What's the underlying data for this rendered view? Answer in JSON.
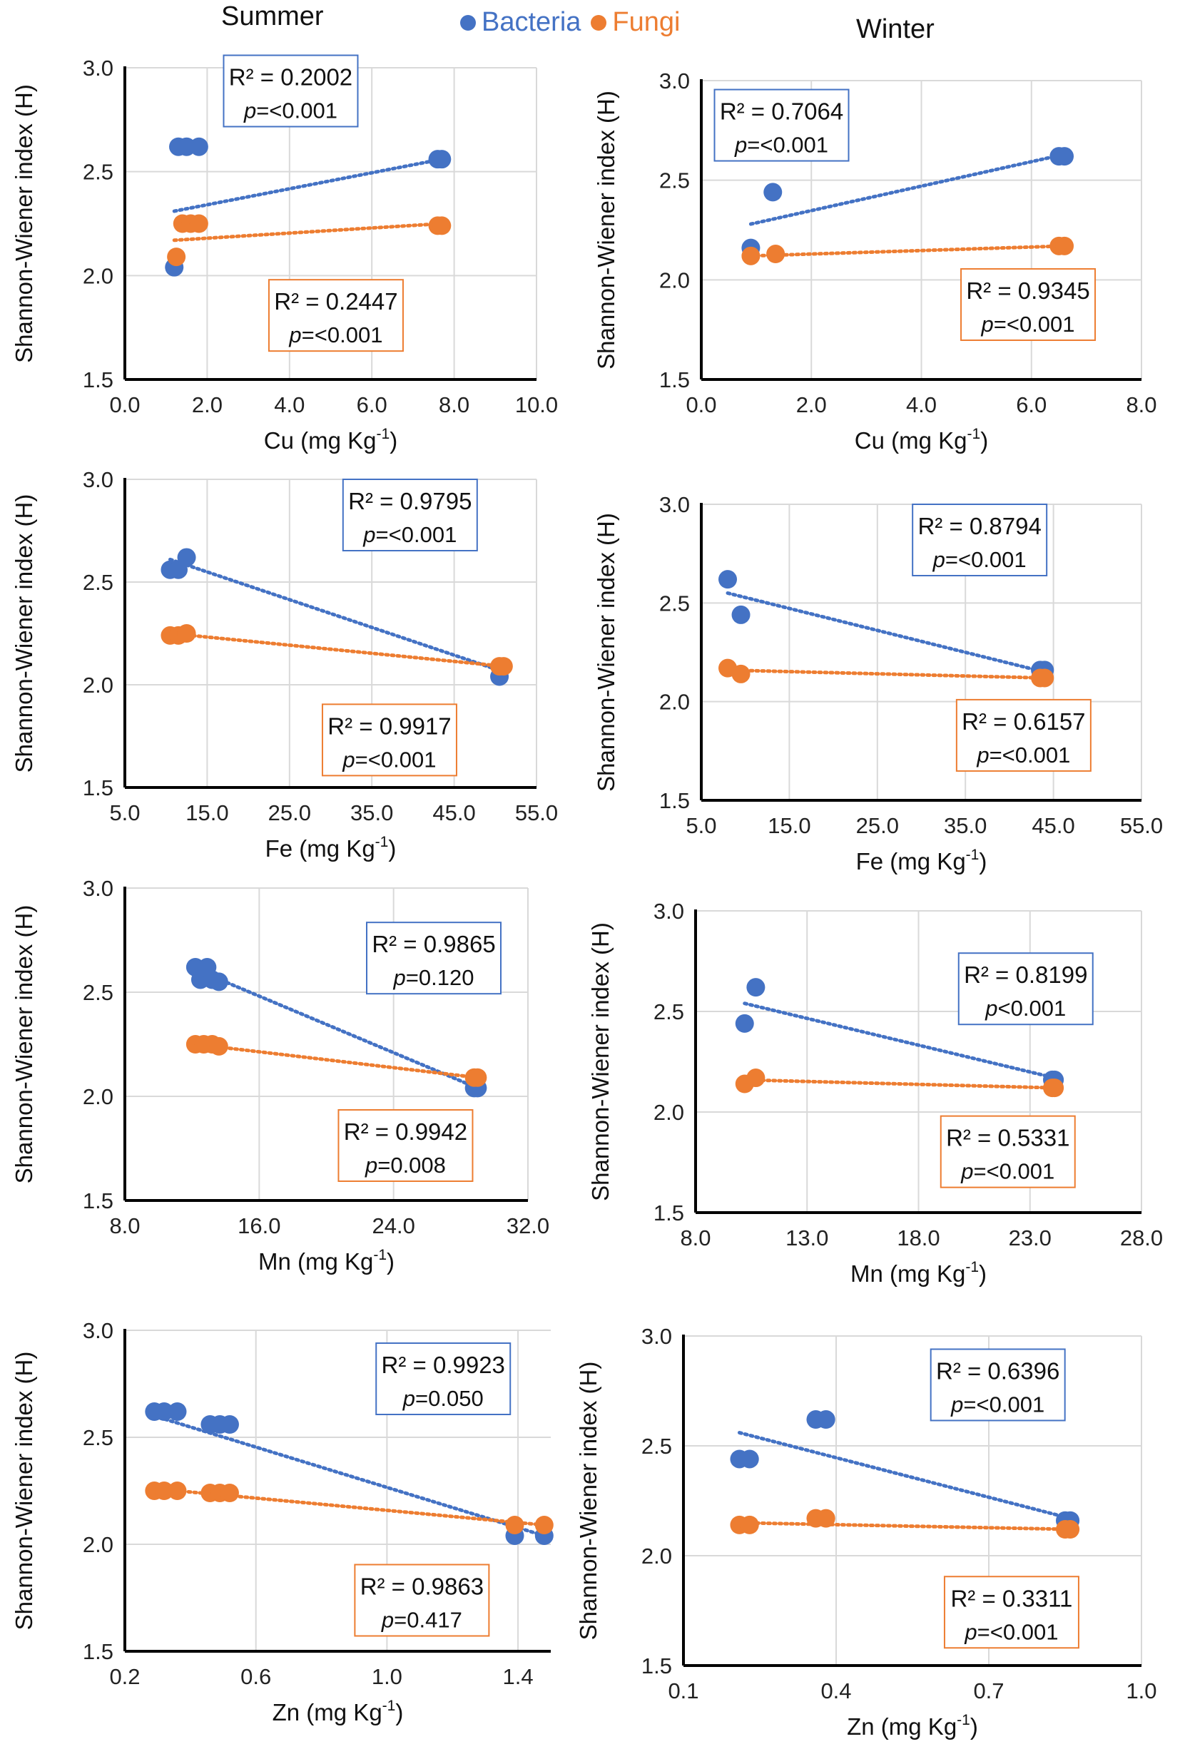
{
  "header": {
    "summer": "Summer",
    "winter": "Winter"
  },
  "legend": [
    {
      "label": "Bacteria",
      "color": "#4472C4"
    },
    {
      "label": "Fungi",
      "color": "#ED7D31"
    }
  ],
  "colors": {
    "bacteria": "#4472C4",
    "fungi": "#ED7D31"
  },
  "chart_data": [
    {
      "id": "cu-summer",
      "type": "scatter",
      "season": "Summer",
      "xlabel": "Cu (mg Kg",
      "xsup": "-1",
      "xunit_close": ")",
      "ylabel": "Shannon-Wiener index (H)",
      "xlim": [
        0,
        10
      ],
      "xticks": [
        "0.0",
        "2.0",
        "4.0",
        "6.0",
        "8.0",
        "10.0"
      ],
      "ylim": [
        1.5,
        3.0
      ],
      "yticks": [
        "1.5",
        "2.0",
        "2.5",
        "3.0"
      ],
      "series": [
        {
          "name": "Bacteria",
          "x": [
            1.3,
            1.5,
            1.8,
            1.2,
            7.6,
            7.7
          ],
          "y": [
            2.62,
            2.62,
            2.62,
            2.04,
            2.56,
            2.56
          ],
          "trend": [
            [
              1.2,
              2.31
            ],
            [
              7.7,
              2.56
            ]
          ],
          "r2": "R² = 0.2002",
          "p_label": "p",
          "p_value": "=<0.001"
        },
        {
          "name": "Fungi",
          "x": [
            1.4,
            1.6,
            1.8,
            1.25,
            7.6,
            7.7
          ],
          "y": [
            2.25,
            2.25,
            2.25,
            2.09,
            2.24,
            2.24
          ],
          "trend": [
            [
              1.2,
              2.17
            ],
            [
              7.7,
              2.25
            ]
          ],
          "r2": "R² = 0.2447",
          "p_label": "p",
          "p_value": "=<0.001"
        }
      ]
    },
    {
      "id": "cu-winter",
      "type": "scatter",
      "season": "Winter",
      "xlabel": "Cu (mg Kg",
      "xsup": "-1",
      "xunit_close": ")",
      "ylabel": "Shannon-Wiener index (H)",
      "xlim": [
        0,
        8
      ],
      "xticks": [
        "0.0",
        "2.0",
        "4.0",
        "6.0",
        "8.0"
      ],
      "ylim": [
        1.5,
        3.0
      ],
      "yticks": [
        "1.5",
        "2.0",
        "2.5",
        "3.0"
      ],
      "series": [
        {
          "name": "Bacteria",
          "x": [
            0.9,
            1.3,
            6.5,
            6.6
          ],
          "y": [
            2.16,
            2.44,
            2.62,
            2.62
          ],
          "trend": [
            [
              0.9,
              2.28
            ],
            [
              6.6,
              2.63
            ]
          ],
          "r2": "R² = 0.7064",
          "p_label": "p",
          "p_value": "=<0.001"
        },
        {
          "name": "Fungi",
          "x": [
            0.9,
            1.35,
            6.5,
            6.6
          ],
          "y": [
            2.12,
            2.13,
            2.17,
            2.17
          ],
          "trend": [
            [
              0.9,
              2.12
            ],
            [
              6.6,
              2.17
            ]
          ],
          "r2": "R² = 0.9345",
          "p_label": "p",
          "p_value": "=<0.001"
        }
      ]
    },
    {
      "id": "fe-summer",
      "type": "scatter",
      "season": "Summer",
      "xlabel": "Fe (mg Kg",
      "xsup": "-1",
      "xunit_close": ")",
      "ylabel": "Shannon-Wiener index (H)",
      "xlim": [
        5,
        55
      ],
      "xticks": [
        "5.0",
        "15.0",
        "25.0",
        "35.0",
        "45.0",
        "55.0"
      ],
      "ylim": [
        1.5,
        3.0
      ],
      "yticks": [
        "1.5",
        "2.0",
        "2.5",
        "3.0"
      ],
      "series": [
        {
          "name": "Bacteria",
          "x": [
            10.5,
            11.5,
            12.5,
            50.5
          ],
          "y": [
            2.56,
            2.56,
            2.62,
            2.04
          ],
          "trend": [
            [
              10.5,
              2.61
            ],
            [
              50.5,
              2.07
            ]
          ],
          "r2": "R² = 0.9795",
          "p_label": "p",
          "p_value": "=<0.001"
        },
        {
          "name": "Fungi",
          "x": [
            10.5,
            11.5,
            12.5,
            50.5,
            51
          ],
          "y": [
            2.24,
            2.24,
            2.25,
            2.09,
            2.09
          ],
          "trend": [
            [
              10.5,
              2.25
            ],
            [
              51,
              2.09
            ]
          ],
          "r2": "R² = 0.9917",
          "p_label": "p",
          "p_value": "=<0.001"
        }
      ]
    },
    {
      "id": "fe-winter",
      "type": "scatter",
      "season": "Winter",
      "xlabel": "Fe (mg Kg",
      "xsup": "-1",
      "xunit_close": ")",
      "ylabel": "Shannon-Wiener index (H)",
      "xlim": [
        5,
        55
      ],
      "xticks": [
        "5.0",
        "15.0",
        "25.0",
        "35.0",
        "45.0",
        "55.0"
      ],
      "ylim": [
        1.5,
        3.0
      ],
      "yticks": [
        "1.5",
        "2.0",
        "2.5",
        "3.0"
      ],
      "series": [
        {
          "name": "Bacteria",
          "x": [
            8.0,
            9.5,
            43.5,
            44.0
          ],
          "y": [
            2.62,
            2.44,
            2.16,
            2.16
          ],
          "trend": [
            [
              8.0,
              2.55
            ],
            [
              44.0,
              2.15
            ]
          ],
          "r2": "R² = 0.8794",
          "p_label": "p",
          "p_value": "=<0.001"
        },
        {
          "name": "Fungi",
          "x": [
            8.0,
            9.5,
            43.5,
            44.0
          ],
          "y": [
            2.17,
            2.14,
            2.12,
            2.12
          ],
          "trend": [
            [
              8.0,
              2.16
            ],
            [
              44.0,
              2.12
            ]
          ],
          "r2": "R² = 0.6157",
          "p_label": "p",
          "p_value": "=<0.001"
        }
      ]
    },
    {
      "id": "mn-summer",
      "type": "scatter",
      "season": "Summer",
      "xlabel": "Mn (mg Kg",
      "xsup": "-1",
      "xunit_close": ")",
      "ylabel": "Shannon-Wiener index (H)",
      "xlim": [
        8,
        32
      ],
      "xticks": [
        "8.0",
        "16.0",
        "24.0",
        "32.0"
      ],
      "ylim": [
        1.5,
        3.0
      ],
      "yticks": [
        "1.5",
        "2.0",
        "2.5",
        "3.0"
      ],
      "series": [
        {
          "name": "Bacteria",
          "x": [
            12.2,
            12.5,
            12.9,
            13.2,
            13.6,
            28.8,
            29.0
          ],
          "y": [
            2.62,
            2.56,
            2.62,
            2.56,
            2.55,
            2.04,
            2.04
          ],
          "trend": [
            [
              12.2,
              2.61
            ],
            [
              29.0,
              2.04
            ]
          ],
          "r2": "R² = 0.9865",
          "p_label": "p",
          "p_value": "=0.120"
        },
        {
          "name": "Fungi",
          "x": [
            12.2,
            12.7,
            13.2,
            13.6,
            28.8,
            29.0
          ],
          "y": [
            2.25,
            2.25,
            2.25,
            2.24,
            2.09,
            2.09
          ],
          "trend": [
            [
              12.2,
              2.25
            ],
            [
              29.0,
              2.09
            ]
          ],
          "r2": "R² = 0.9942",
          "p_label": "p",
          "p_value": "=0.008"
        }
      ]
    },
    {
      "id": "mn-winter",
      "type": "scatter",
      "season": "Winter",
      "xlabel": "Mn (mg Kg",
      "xsup": "-1",
      "xunit_close": ")",
      "ylabel": "Shannon-Wiener index (H)",
      "xlim": [
        8,
        28
      ],
      "xticks": [
        "8.0",
        "13.0",
        "18.0",
        "23.0",
        "28.0"
      ],
      "ylim": [
        1.5,
        3.0
      ],
      "yticks": [
        "1.5",
        "2.0",
        "2.5",
        "3.0"
      ],
      "series": [
        {
          "name": "Bacteria",
          "x": [
            10.2,
            10.7,
            24.0,
            24.1
          ],
          "y": [
            2.44,
            2.62,
            2.16,
            2.16
          ],
          "trend": [
            [
              10.2,
              2.54
            ],
            [
              24.1,
              2.17
            ]
          ],
          "r2": "R² = 0.8199",
          "p_label": "p",
          "p_value": "<0.001"
        },
        {
          "name": "Fungi",
          "x": [
            10.2,
            10.7,
            24.0,
            24.1
          ],
          "y": [
            2.14,
            2.17,
            2.12,
            2.12
          ],
          "trend": [
            [
              10.2,
              2.16
            ],
            [
              24.1,
              2.12
            ]
          ],
          "r2": "R² = 0.5331",
          "p_label": "p",
          "p_value": "=<0.001"
        }
      ]
    },
    {
      "id": "zn-summer",
      "type": "scatter",
      "season": "Summer",
      "xlabel": "Zn (mg Kg",
      "xsup": "-1",
      "xunit_close": ")",
      "ylabel": "Shannon-Wiener index (H)",
      "xlim": [
        0.2,
        1.5
      ],
      "xticks": [
        "0.2",
        "0.6",
        "1.0",
        "1.4"
      ],
      "ylim": [
        1.5,
        3.0
      ],
      "yticks": [
        "1.5",
        "2.0",
        "2.5",
        "3.0"
      ],
      "series": [
        {
          "name": "Bacteria",
          "x": [
            0.29,
            0.32,
            0.36,
            0.46,
            0.49,
            0.52,
            1.39,
            1.48
          ],
          "y": [
            2.62,
            2.62,
            2.62,
            2.56,
            2.56,
            2.56,
            2.04,
            2.04
          ],
          "trend": [
            [
              0.29,
              2.6
            ],
            [
              1.48,
              2.04
            ]
          ],
          "r2": "R² = 0.9923",
          "p_label": "p",
          "p_value": "=0.050"
        },
        {
          "name": "Fungi",
          "x": [
            0.29,
            0.32,
            0.36,
            0.46,
            0.49,
            0.52,
            1.39,
            1.48
          ],
          "y": [
            2.25,
            2.25,
            2.25,
            2.24,
            2.24,
            2.24,
            2.09,
            2.09
          ],
          "trend": [
            [
              0.29,
              2.26
            ],
            [
              1.48,
              2.09
            ]
          ],
          "r2": "R² = 0.9863",
          "p_label": "p",
          "p_value": "=0.417"
        }
      ]
    },
    {
      "id": "zn-winter",
      "type": "scatter",
      "season": "Winter",
      "xlabel": "Zn (mg Kg",
      "xsup": "-1",
      "xunit_close": ")",
      "ylabel": "Shannon-Wiener index (H)",
      "xlim": [
        0.1,
        1.0
      ],
      "xticks": [
        "0.1",
        "0.4",
        "0.7",
        "1.0"
      ],
      "ylim": [
        1.5,
        3.0
      ],
      "yticks": [
        "1.5",
        "2.0",
        "2.5",
        "3.0"
      ],
      "series": [
        {
          "name": "Bacteria",
          "x": [
            0.21,
            0.23,
            0.36,
            0.38,
            0.85,
            0.86
          ],
          "y": [
            2.44,
            2.44,
            2.62,
            2.62,
            2.16,
            2.16
          ],
          "trend": [
            [
              0.21,
              2.56
            ],
            [
              0.86,
              2.17
            ]
          ],
          "r2": "R² = 0.6396",
          "p_label": "p",
          "p_value": "=<0.001"
        },
        {
          "name": "Fungi",
          "x": [
            0.21,
            0.23,
            0.36,
            0.38,
            0.85,
            0.86
          ],
          "y": [
            2.14,
            2.14,
            2.17,
            2.17,
            2.12,
            2.12
          ],
          "trend": [
            [
              0.21,
              2.15
            ],
            [
              0.86,
              2.12
            ]
          ],
          "r2": "R² = 0.3311",
          "p_label": "p",
          "p_value": "=<0.001"
        }
      ]
    }
  ]
}
